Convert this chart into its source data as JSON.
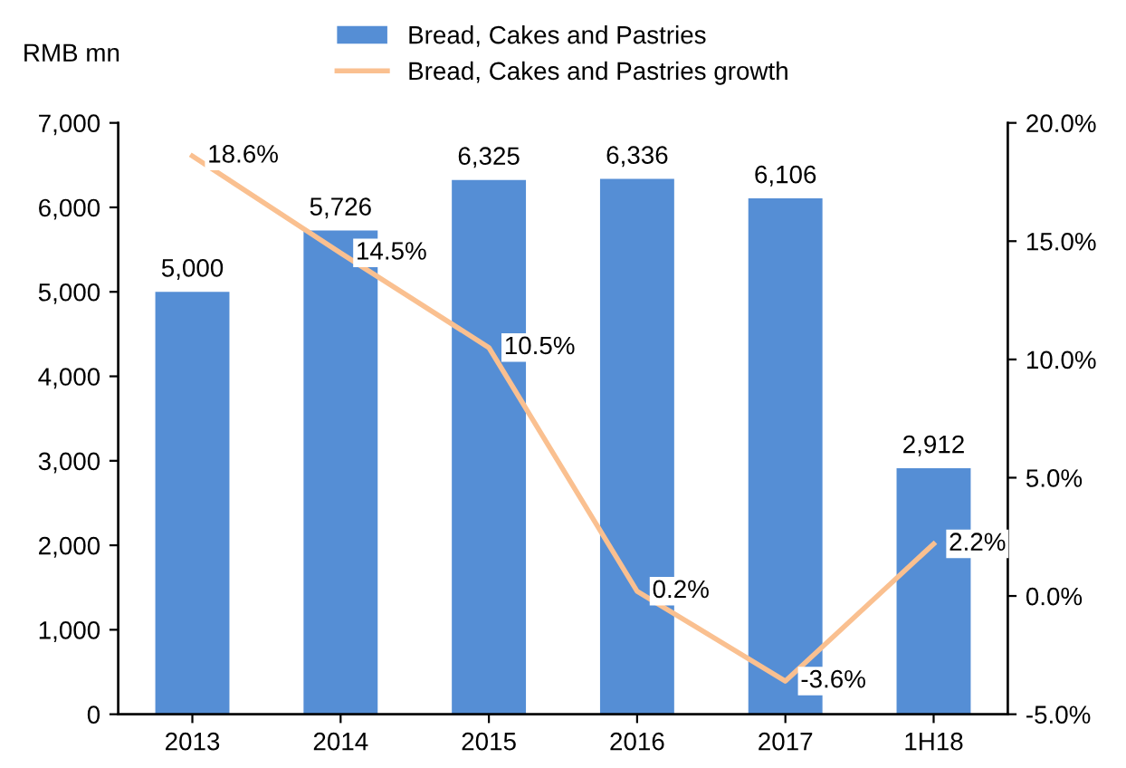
{
  "chart_data": {
    "type": "bar",
    "ylabel": "RMB mn",
    "categories": [
      "2013",
      "2014",
      "2015",
      "2016",
      "2017",
      "1H18"
    ],
    "series": [
      {
        "name": "Bread, Cakes and Pastries",
        "color": "#558ed5",
        "values": [
          5000,
          5726,
          6325,
          6336,
          6106,
          2912
        ],
        "value_labels": [
          "5,000",
          "5,726",
          "6,325",
          "6,336",
          "6,106",
          "2,912"
        ]
      },
      {
        "name": "Bread, Cakes and Pastries growth",
        "type": "line",
        "axis": "y2",
        "color": "#fac090",
        "values": [
          18.6,
          14.5,
          10.5,
          0.2,
          -3.6,
          2.2
        ],
        "value_labels": [
          "18.6%",
          "14.5%",
          "10.5%",
          "0.2%",
          "-3.6%",
          "2.2%"
        ]
      }
    ],
    "ylim": [
      0,
      7000
    ],
    "yticks": [
      0,
      {
        "value": 1000,
        "label": "1,000"
      },
      {
        "value": 2000,
        "label": "2,000"
      },
      {
        "value": 3000,
        "label": "3,000"
      },
      {
        "value": 4000,
        "label": "4,000"
      },
      {
        "value": 5000,
        "label": "5,000"
      },
      {
        "value": 6000,
        "label": "6,000"
      },
      {
        "value": 7000,
        "label": "7,000"
      }
    ],
    "y2lim": [
      -5,
      20
    ],
    "y2ticks": [
      {
        "value": -5,
        "label": "-5.0%"
      },
      {
        "value": 0,
        "label": "0.0%"
      },
      {
        "value": 5,
        "label": "5.0%"
      },
      {
        "value": 10,
        "label": "10.0%"
      },
      {
        "value": 15,
        "label": "15.0%"
      },
      {
        "value": 20,
        "label": "20.0%"
      }
    ],
    "grid": false,
    "legend": "top",
    "marker": "none",
    "line_style": "solid"
  }
}
